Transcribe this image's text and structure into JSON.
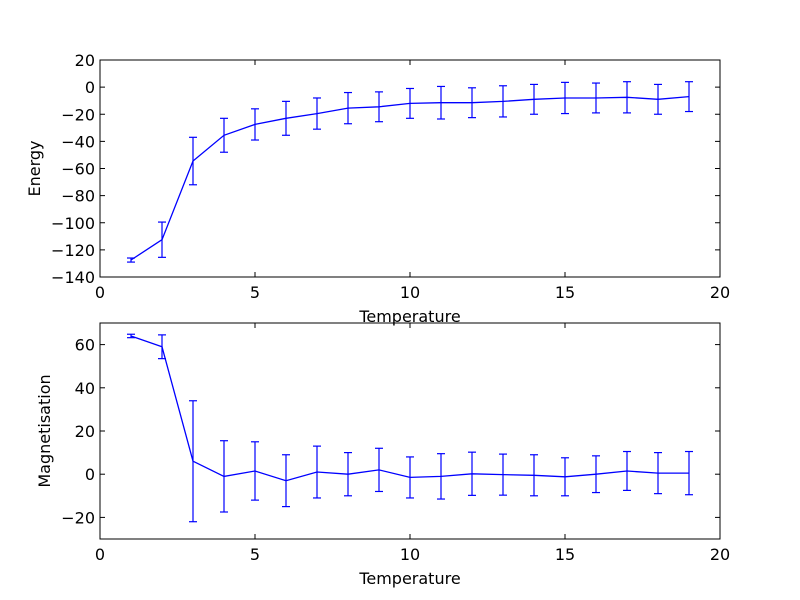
{
  "colors": {
    "series": "#0000ff",
    "axes": "#000000",
    "background": "#ffffff"
  },
  "chart_data": [
    {
      "type": "line",
      "xlabel": "Temperature",
      "ylabel": "Energy",
      "xlim": [
        0,
        20
      ],
      "ylim": [
        -140,
        20
      ],
      "xticks": [
        0,
        5,
        10,
        15,
        20
      ],
      "yticks": [
        20,
        0,
        -20,
        -40,
        -60,
        -80,
        -100,
        -120,
        -140
      ],
      "xtick_labels": [
        "0",
        "5",
        "10",
        "15",
        "20"
      ],
      "ytick_labels": [
        "20",
        "0",
        "−20",
        "−40",
        "−60",
        "−80",
        "−100",
        "−120",
        "−140"
      ],
      "grid": false,
      "error_bars": true,
      "series": [
        {
          "x": [
            1,
            2,
            3,
            4,
            5,
            6,
            7,
            8,
            9,
            10,
            11,
            12,
            13,
            14,
            15,
            16,
            17,
            18,
            19
          ],
          "values": [
            -127.5,
            -112.5,
            -54.5,
            -35.5,
            -27.5,
            -23,
            -19.5,
            -15.5,
            -14.5,
            -12,
            -11.5,
            -11.5,
            -10.5,
            -9,
            -8,
            -8,
            -7.5,
            -9,
            -7
          ],
          "errors": [
            1.5,
            13,
            17.5,
            12.5,
            11.5,
            12.5,
            11.5,
            11.5,
            11,
            11,
            12,
            11,
            11.5,
            11,
            11.5,
            11,
            11.5,
            11,
            11
          ]
        }
      ]
    },
    {
      "type": "line",
      "xlabel": "Temperature",
      "ylabel": "Magnetisation",
      "xlim": [
        0,
        20
      ],
      "ylim": [
        -30,
        70
      ],
      "xticks": [
        0,
        5,
        10,
        15,
        20
      ],
      "yticks": [
        60,
        40,
        20,
        0,
        -20
      ],
      "xtick_labels": [
        "0",
        "5",
        "10",
        "15",
        "20"
      ],
      "ytick_labels": [
        "60",
        "40",
        "20",
        "0",
        "−20"
      ],
      "grid": false,
      "error_bars": true,
      "series": [
        {
          "x": [
            1,
            2,
            3,
            4,
            5,
            6,
            7,
            8,
            9,
            10,
            11,
            12,
            13,
            14,
            15,
            16,
            17,
            18,
            19
          ],
          "values": [
            64,
            59,
            6,
            -1,
            1.5,
            -3,
            1,
            0,
            2,
            -1.5,
            -1,
            0.2,
            -0.2,
            -0.5,
            -1.2,
            0,
            1.5,
            0.5,
            0.5
          ],
          "errors": [
            0.8,
            5.5,
            28,
            16.5,
            13.5,
            12,
            12,
            10,
            10,
            9.5,
            10.5,
            10,
            9.5,
            9.5,
            8.8,
            8.5,
            9,
            9.5,
            10
          ]
        }
      ]
    }
  ]
}
